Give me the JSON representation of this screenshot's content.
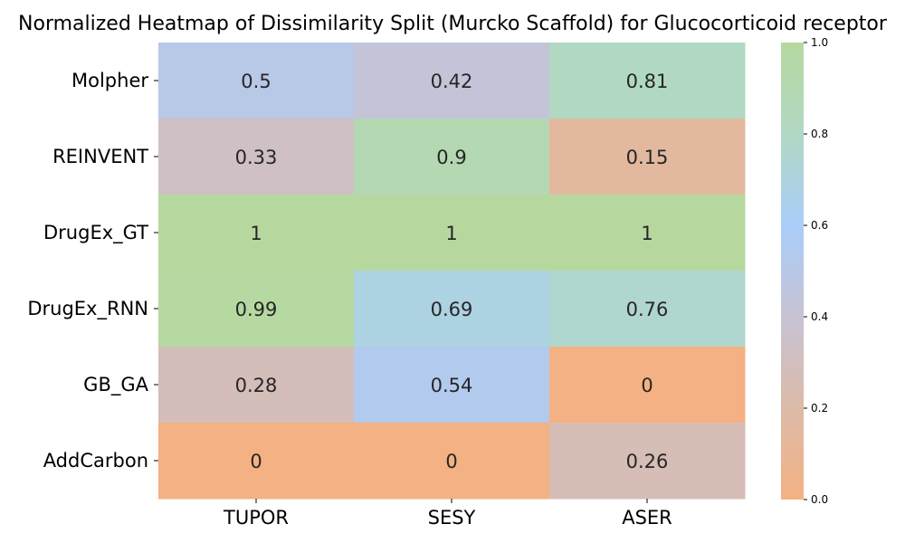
{
  "chart_data": {
    "type": "heatmap",
    "title": "Normalized Heatmap of Dissimilarity Split (Murcko Scaffold) for Glucocorticoid receptor",
    "rows": [
      "Molpher",
      "REINVENT",
      "DrugEx_GT",
      "DrugEx_RNN",
      "GB_GA",
      "AddCarbon"
    ],
    "columns": [
      "TUPOR",
      "SESY",
      "ASER"
    ],
    "values": [
      [
        0.5,
        0.42,
        0.81
      ],
      [
        0.33,
        0.9,
        0.15
      ],
      [
        1,
        1,
        1
      ],
      [
        0.99,
        0.69,
        0.76
      ],
      [
        0.28,
        0.54,
        0
      ],
      [
        0,
        0,
        0.26
      ]
    ],
    "colorbar": {
      "range": [
        0.0,
        1.0
      ],
      "ticks": [
        "0.0",
        "0.2",
        "0.4",
        "0.6",
        "0.8",
        "1.0"
      ],
      "colors": [
        "#f4b183",
        "#dcbba8",
        "#c7c3d4",
        "#a9cdf9",
        "#b1d8c4",
        "#b6d89f"
      ],
      "position": "right"
    },
    "annotations": true,
    "grid": false
  }
}
